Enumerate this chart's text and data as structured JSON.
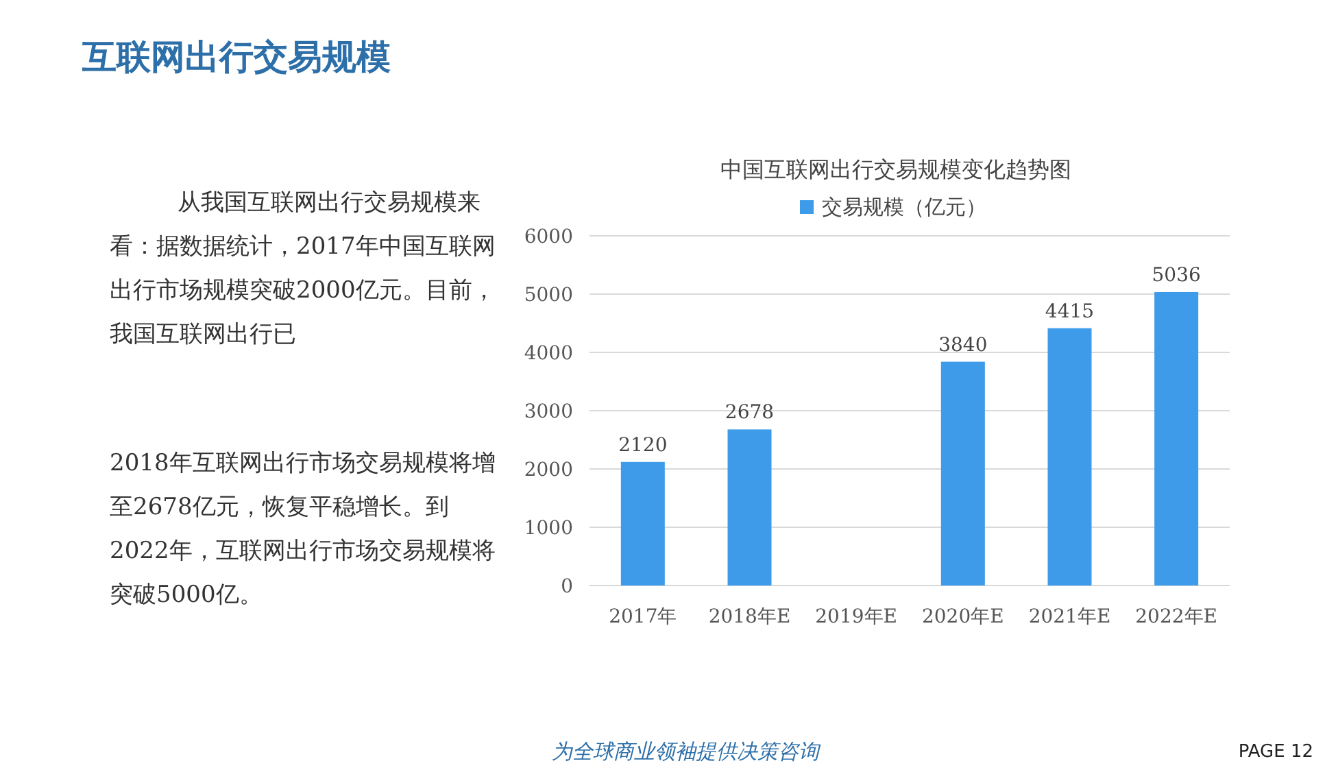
{
  "chart_data": {
    "type": "bar",
    "title": "互联网出行交易规模",
    "subtitle": "中国互联网出行交易规模变化趋势图",
    "categories": [
      "2017年",
      "2018年E",
      "2019年E",
      "2020年E",
      "2021年E",
      "2022年E"
    ],
    "series": [
      {
        "name": "交易规模（亿元）",
        "color": "#3d9be9",
        "values": [
          2120,
          2678,
          null,
          3840,
          4415,
          5036
        ],
        "value_labels": [
          "2120",
          "2678",
          null,
          "3840",
          "4415",
          "5036"
        ]
      }
    ],
    "ylim": [
      0,
      6000
    ],
    "yticks": [
      0,
      1000,
      2000,
      3000,
      4000,
      5000,
      6000
    ],
    "grid": "y",
    "legend": "top",
    "annotations": [
      "从我国互联网出行交易规模来看：据数据统计，2017年中国互联网出行市场规模突破2000亿元。目前，我国互联网出行已",
      "2018年互联网出行市场交易规模将增至2678亿元，恢复平稳增长。到2022年，互联网出行市场交易规模将突破5000亿。",
      "为全球商业领袖提供决策咨询",
      "PAGE 12"
    ]
  }
}
